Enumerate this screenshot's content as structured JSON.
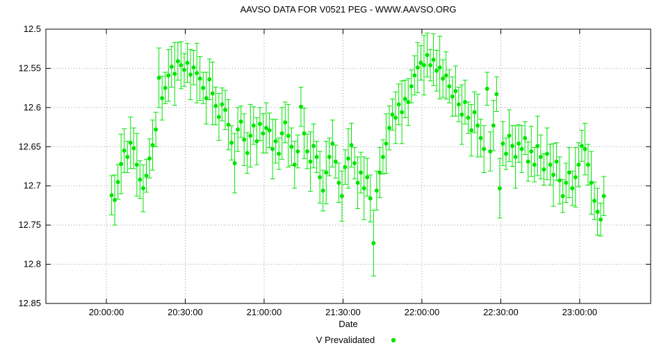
{
  "chart_data": {
    "type": "scatter",
    "title": "AAVSO DATA FOR V0521 PEG - WWW.AAVSO.ORG",
    "xlabel": "Date",
    "ylabel": "",
    "legend_label": "V Prevalidated",
    "legend_position": "bottom-center",
    "grid": "dotted",
    "point_color": "#00e400",
    "y_axis": {
      "unit": "V magnitude",
      "min": 12.5,
      "max": 12.85,
      "inverted": true,
      "ticks": [
        12.5,
        12.55,
        12.6,
        12.65,
        12.7,
        12.75,
        12.8,
        12.85
      ],
      "tick_labels": [
        "12.5",
        "12.55",
        "12.6",
        "12.65",
        "12.7",
        "12.75",
        "12.8",
        "12.85"
      ]
    },
    "x_axis": {
      "unit": "minutes after 20:00:00",
      "min": -23,
      "max": 207,
      "ticks": [
        0,
        30,
        60,
        90,
        120,
        150,
        180
      ],
      "tick_labels": [
        "20:00:00",
        "20:30:00",
        "21:00:00",
        "21:30:00",
        "22:00:00",
        "22:30:00",
        "23:00:00"
      ]
    },
    "series": [
      {
        "name": "V Prevalidated",
        "marker": "filled-circle",
        "error_bars": true,
        "points": [
          [
            2,
            12.712,
            0.025
          ],
          [
            3.2,
            12.718,
            0.032
          ],
          [
            4.4,
            12.695,
            0.022
          ],
          [
            5.6,
            12.672,
            0.038
          ],
          [
            6.8,
            12.655,
            0.028
          ],
          [
            8,
            12.663,
            0.02
          ],
          [
            9.2,
            12.645,
            0.033
          ],
          [
            10.4,
            12.652,
            0.026
          ],
          [
            11.6,
            12.673,
            0.04
          ],
          [
            12.8,
            12.692,
            0.024
          ],
          [
            14,
            12.703,
            0.03
          ],
          [
            15.2,
            12.687,
            0.021
          ],
          [
            16.4,
            12.665,
            0.025
          ],
          [
            17.6,
            12.648,
            0.032
          ],
          [
            18.8,
            12.628,
            0.022
          ],
          [
            20,
            12.562,
            0.038
          ],
          [
            21.2,
            12.588,
            0.028
          ],
          [
            22.4,
            12.575,
            0.02
          ],
          [
            23.6,
            12.559,
            0.033
          ],
          [
            24.8,
            12.548,
            0.026
          ],
          [
            26,
            12.557,
            0.04
          ],
          [
            27.2,
            12.541,
            0.024
          ],
          [
            28.4,
            12.546,
            0.03
          ],
          [
            29.6,
            12.552,
            0.021
          ],
          [
            30.8,
            12.543,
            0.025
          ],
          [
            32,
            12.558,
            0.032
          ],
          [
            33.2,
            12.549,
            0.022
          ],
          [
            34.4,
            12.556,
            0.038
          ],
          [
            35.6,
            12.563,
            0.028
          ],
          [
            36.8,
            12.575,
            0.02
          ],
          [
            38,
            12.588,
            0.033
          ],
          [
            39.2,
            12.564,
            0.026
          ],
          [
            40.4,
            12.582,
            0.04
          ],
          [
            41.6,
            12.598,
            0.024
          ],
          [
            42.8,
            12.612,
            0.03
          ],
          [
            44,
            12.596,
            0.021
          ],
          [
            45.2,
            12.603,
            0.025
          ],
          [
            46.4,
            12.622,
            0.032
          ],
          [
            47.6,
            12.645,
            0.022
          ],
          [
            48.8,
            12.671,
            0.038
          ],
          [
            50,
            12.628,
            0.028
          ],
          [
            51.2,
            12.618,
            0.02
          ],
          [
            52.4,
            12.641,
            0.033
          ],
          [
            53.6,
            12.658,
            0.026
          ],
          [
            54.8,
            12.636,
            0.04
          ],
          [
            56,
            12.623,
            0.024
          ],
          [
            57.2,
            12.643,
            0.03
          ],
          [
            58.4,
            12.621,
            0.021
          ],
          [
            59.6,
            12.633,
            0.025
          ],
          [
            60.8,
            12.626,
            0.032
          ],
          [
            62,
            12.629,
            0.022
          ],
          [
            63.2,
            12.653,
            0.038
          ],
          [
            64.4,
            12.643,
            0.028
          ],
          [
            65.6,
            12.659,
            0.02
          ],
          [
            66.8,
            12.633,
            0.033
          ],
          [
            68,
            12.619,
            0.026
          ],
          [
            69.2,
            12.636,
            0.04
          ],
          [
            70.4,
            12.65,
            0.024
          ],
          [
            71.6,
            12.673,
            0.03
          ],
          [
            72.8,
            12.656,
            0.021
          ],
          [
            74,
            12.599,
            0.025
          ],
          [
            75.2,
            12.633,
            0.032
          ],
          [
            76.4,
            12.656,
            0.022
          ],
          [
            77.6,
            12.669,
            0.038
          ],
          [
            78.8,
            12.649,
            0.028
          ],
          [
            80,
            12.663,
            0.02
          ],
          [
            81.2,
            12.689,
            0.033
          ],
          [
            82.4,
            12.706,
            0.026
          ],
          [
            83.6,
            12.683,
            0.04
          ],
          [
            84.8,
            12.663,
            0.024
          ],
          [
            86,
            12.646,
            0.03
          ],
          [
            87.2,
            12.669,
            0.021
          ],
          [
            88.4,
            12.696,
            0.025
          ],
          [
            89.6,
            12.713,
            0.032
          ],
          [
            90.8,
            12.676,
            0.022
          ],
          [
            92,
            12.665,
            0.038
          ],
          [
            93.2,
            12.648,
            0.028
          ],
          [
            94.4,
            12.671,
            0.02
          ],
          [
            95.6,
            12.696,
            0.033
          ],
          [
            96.8,
            12.683,
            0.026
          ],
          [
            98,
            12.703,
            0.04
          ],
          [
            99.2,
            12.689,
            0.024
          ],
          [
            100.4,
            12.716,
            0.03
          ],
          [
            101.6,
            12.773,
            0.042
          ],
          [
            102.8,
            12.706,
            0.025
          ],
          [
            104,
            12.683,
            0.032
          ],
          [
            105.2,
            12.663,
            0.022
          ],
          [
            106.4,
            12.646,
            0.038
          ],
          [
            107.6,
            12.626,
            0.028
          ],
          [
            108.8,
            12.609,
            0.02
          ],
          [
            110,
            12.613,
            0.033
          ],
          [
            111.2,
            12.596,
            0.026
          ],
          [
            112.4,
            12.606,
            0.04
          ],
          [
            113.6,
            12.589,
            0.024
          ],
          [
            114.8,
            12.593,
            0.03
          ],
          [
            116,
            12.573,
            0.021
          ],
          [
            117.2,
            12.559,
            0.025
          ],
          [
            118.4,
            12.549,
            0.032
          ],
          [
            119.6,
            12.543,
            0.022
          ],
          [
            120.8,
            12.546,
            0.038
          ],
          [
            122,
            12.533,
            0.028
          ],
          [
            123.2,
            12.546,
            0.02
          ],
          [
            124.4,
            12.539,
            0.033
          ],
          [
            125.6,
            12.553,
            0.026
          ],
          [
            126.8,
            12.549,
            0.04
          ],
          [
            128,
            12.563,
            0.024
          ],
          [
            129.2,
            12.559,
            0.03
          ],
          [
            130.4,
            12.573,
            0.021
          ],
          [
            131.6,
            12.586,
            0.025
          ],
          [
            132.8,
            12.579,
            0.032
          ],
          [
            134,
            12.596,
            0.022
          ],
          [
            135.2,
            12.609,
            0.038
          ],
          [
            136.4,
            12.593,
            0.028
          ],
          [
            137.6,
            12.613,
            0.02
          ],
          [
            138.8,
            12.629,
            0.033
          ],
          [
            140,
            12.606,
            0.026
          ],
          [
            141.2,
            12.623,
            0.04
          ],
          [
            142.4,
            12.639,
            0.024
          ],
          [
            143.6,
            12.653,
            0.03
          ],
          [
            144.8,
            12.576,
            0.021
          ],
          [
            146,
            12.656,
            0.025
          ],
          [
            147.2,
            12.623,
            0.032
          ],
          [
            148.4,
            12.583,
            0.022
          ],
          [
            149.6,
            12.703,
            0.038
          ],
          [
            150.8,
            12.646,
            0.028
          ],
          [
            152,
            12.659,
            0.02
          ],
          [
            153.2,
            12.636,
            0.033
          ],
          [
            154.4,
            12.649,
            0.026
          ],
          [
            155.6,
            12.663,
            0.04
          ],
          [
            156.8,
            12.646,
            0.024
          ],
          [
            158,
            12.653,
            0.03
          ],
          [
            159.2,
            12.639,
            0.021
          ],
          [
            160.4,
            12.669,
            0.025
          ],
          [
            161.6,
            12.656,
            0.032
          ],
          [
            162.8,
            12.673,
            0.022
          ],
          [
            164,
            12.649,
            0.038
          ],
          [
            165.2,
            12.663,
            0.028
          ],
          [
            166.4,
            12.679,
            0.02
          ],
          [
            167.6,
            12.659,
            0.033
          ],
          [
            168.8,
            12.673,
            0.026
          ],
          [
            170,
            12.686,
            0.04
          ],
          [
            171.2,
            12.669,
            0.024
          ],
          [
            172.4,
            12.693,
            0.03
          ],
          [
            173.6,
            12.713,
            0.021
          ],
          [
            174.8,
            12.696,
            0.025
          ],
          [
            176,
            12.683,
            0.032
          ],
          [
            177.2,
            12.703,
            0.022
          ],
          [
            178.4,
            12.689,
            0.038
          ],
          [
            179.6,
            12.673,
            0.028
          ],
          [
            180.8,
            12.649,
            0.02
          ],
          [
            182,
            12.653,
            0.033
          ],
          [
            183.2,
            12.673,
            0.026
          ],
          [
            184.4,
            12.696,
            0.04
          ],
          [
            185.6,
            12.719,
            0.024
          ],
          [
            186.8,
            12.733,
            0.03
          ],
          [
            188,
            12.743,
            0.021
          ],
          [
            189.2,
            12.713,
            0.025
          ]
        ]
      }
    ]
  }
}
